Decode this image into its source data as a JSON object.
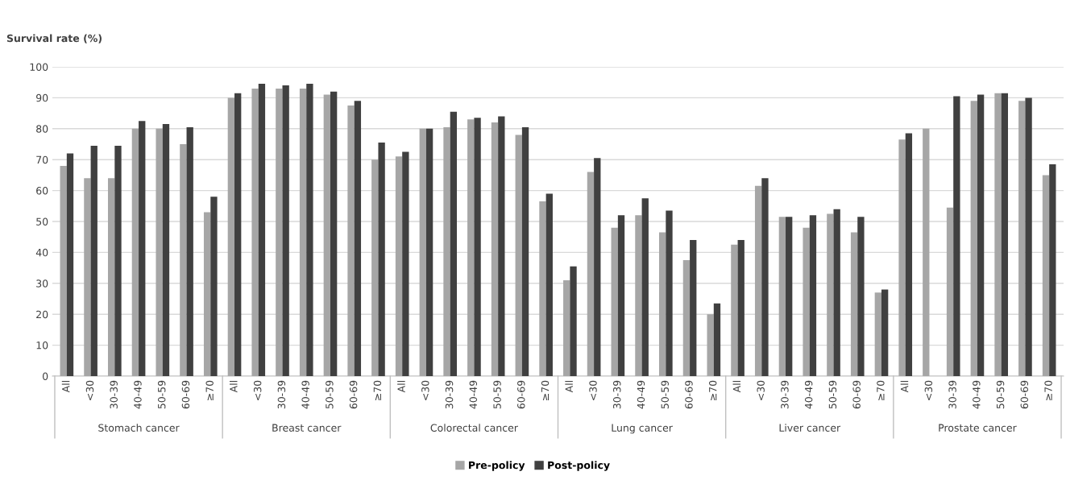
{
  "chart_data": {
    "type": "bar",
    "ylabel": "Survival rate (%)",
    "categories": [
      "All",
      "<30",
      "30-39",
      "40-49",
      "50-59",
      "60-69",
      "≥70",
      "All",
      "<30",
      "30-39",
      "40-49",
      "50-59",
      "60-69",
      "≥70",
      "All",
      "<30",
      "30-39",
      "40-49",
      "50-59",
      "60-69",
      "≥70",
      "All",
      "<30",
      "30-39",
      "40-49",
      "50-59",
      "60-69",
      "≥70",
      "All",
      "<30",
      "30-39",
      "40-49",
      "50-59",
      "60-69",
      "≥70",
      "All",
      "<30",
      "30-39",
      "40-49",
      "50-59",
      "60-69",
      "≥70"
    ],
    "series": [
      {
        "name": "Pre-policy",
        "color": "#a6a6a6",
        "values": [
          68,
          64,
          64,
          80,
          80,
          75,
          53,
          90,
          93,
          93,
          93,
          91,
          87.5,
          70,
          71,
          80,
          80.5,
          83,
          82,
          78,
          56.5,
          31,
          66,
          48,
          52,
          46.5,
          37.5,
          20,
          42.5,
          61.5,
          51.5,
          48,
          52.5,
          46.5,
          27,
          76.5,
          80,
          54.5,
          89,
          91.5,
          89,
          65
        ]
      },
      {
        "name": "Post-policy",
        "color": "#404040",
        "values": [
          72,
          74.5,
          74.5,
          82.5,
          81.5,
          80.5,
          58,
          91.5,
          94.5,
          94,
          94.5,
          92,
          89,
          75.5,
          72.5,
          80,
          85.5,
          83.5,
          84,
          80.5,
          59,
          35.5,
          70.5,
          52,
          57.5,
          53.5,
          44,
          23.5,
          44,
          64,
          51.5,
          52,
          54,
          51.5,
          28,
          78.5,
          null,
          90.5,
          91,
          91.5,
          90,
          68.5
        ]
      }
    ],
    "annotations": [
      "Stomach cancer",
      "Breast cancer",
      "Colorectal cancer",
      "Lung cancer",
      "Liver cancer",
      "Prostate cancer"
    ],
    "ylim": [
      0,
      100
    ],
    "yticks": [
      0,
      10,
      20,
      30,
      40,
      50,
      60,
      70,
      80,
      90,
      100
    ],
    "grid": "y",
    "legend": "bottom"
  }
}
